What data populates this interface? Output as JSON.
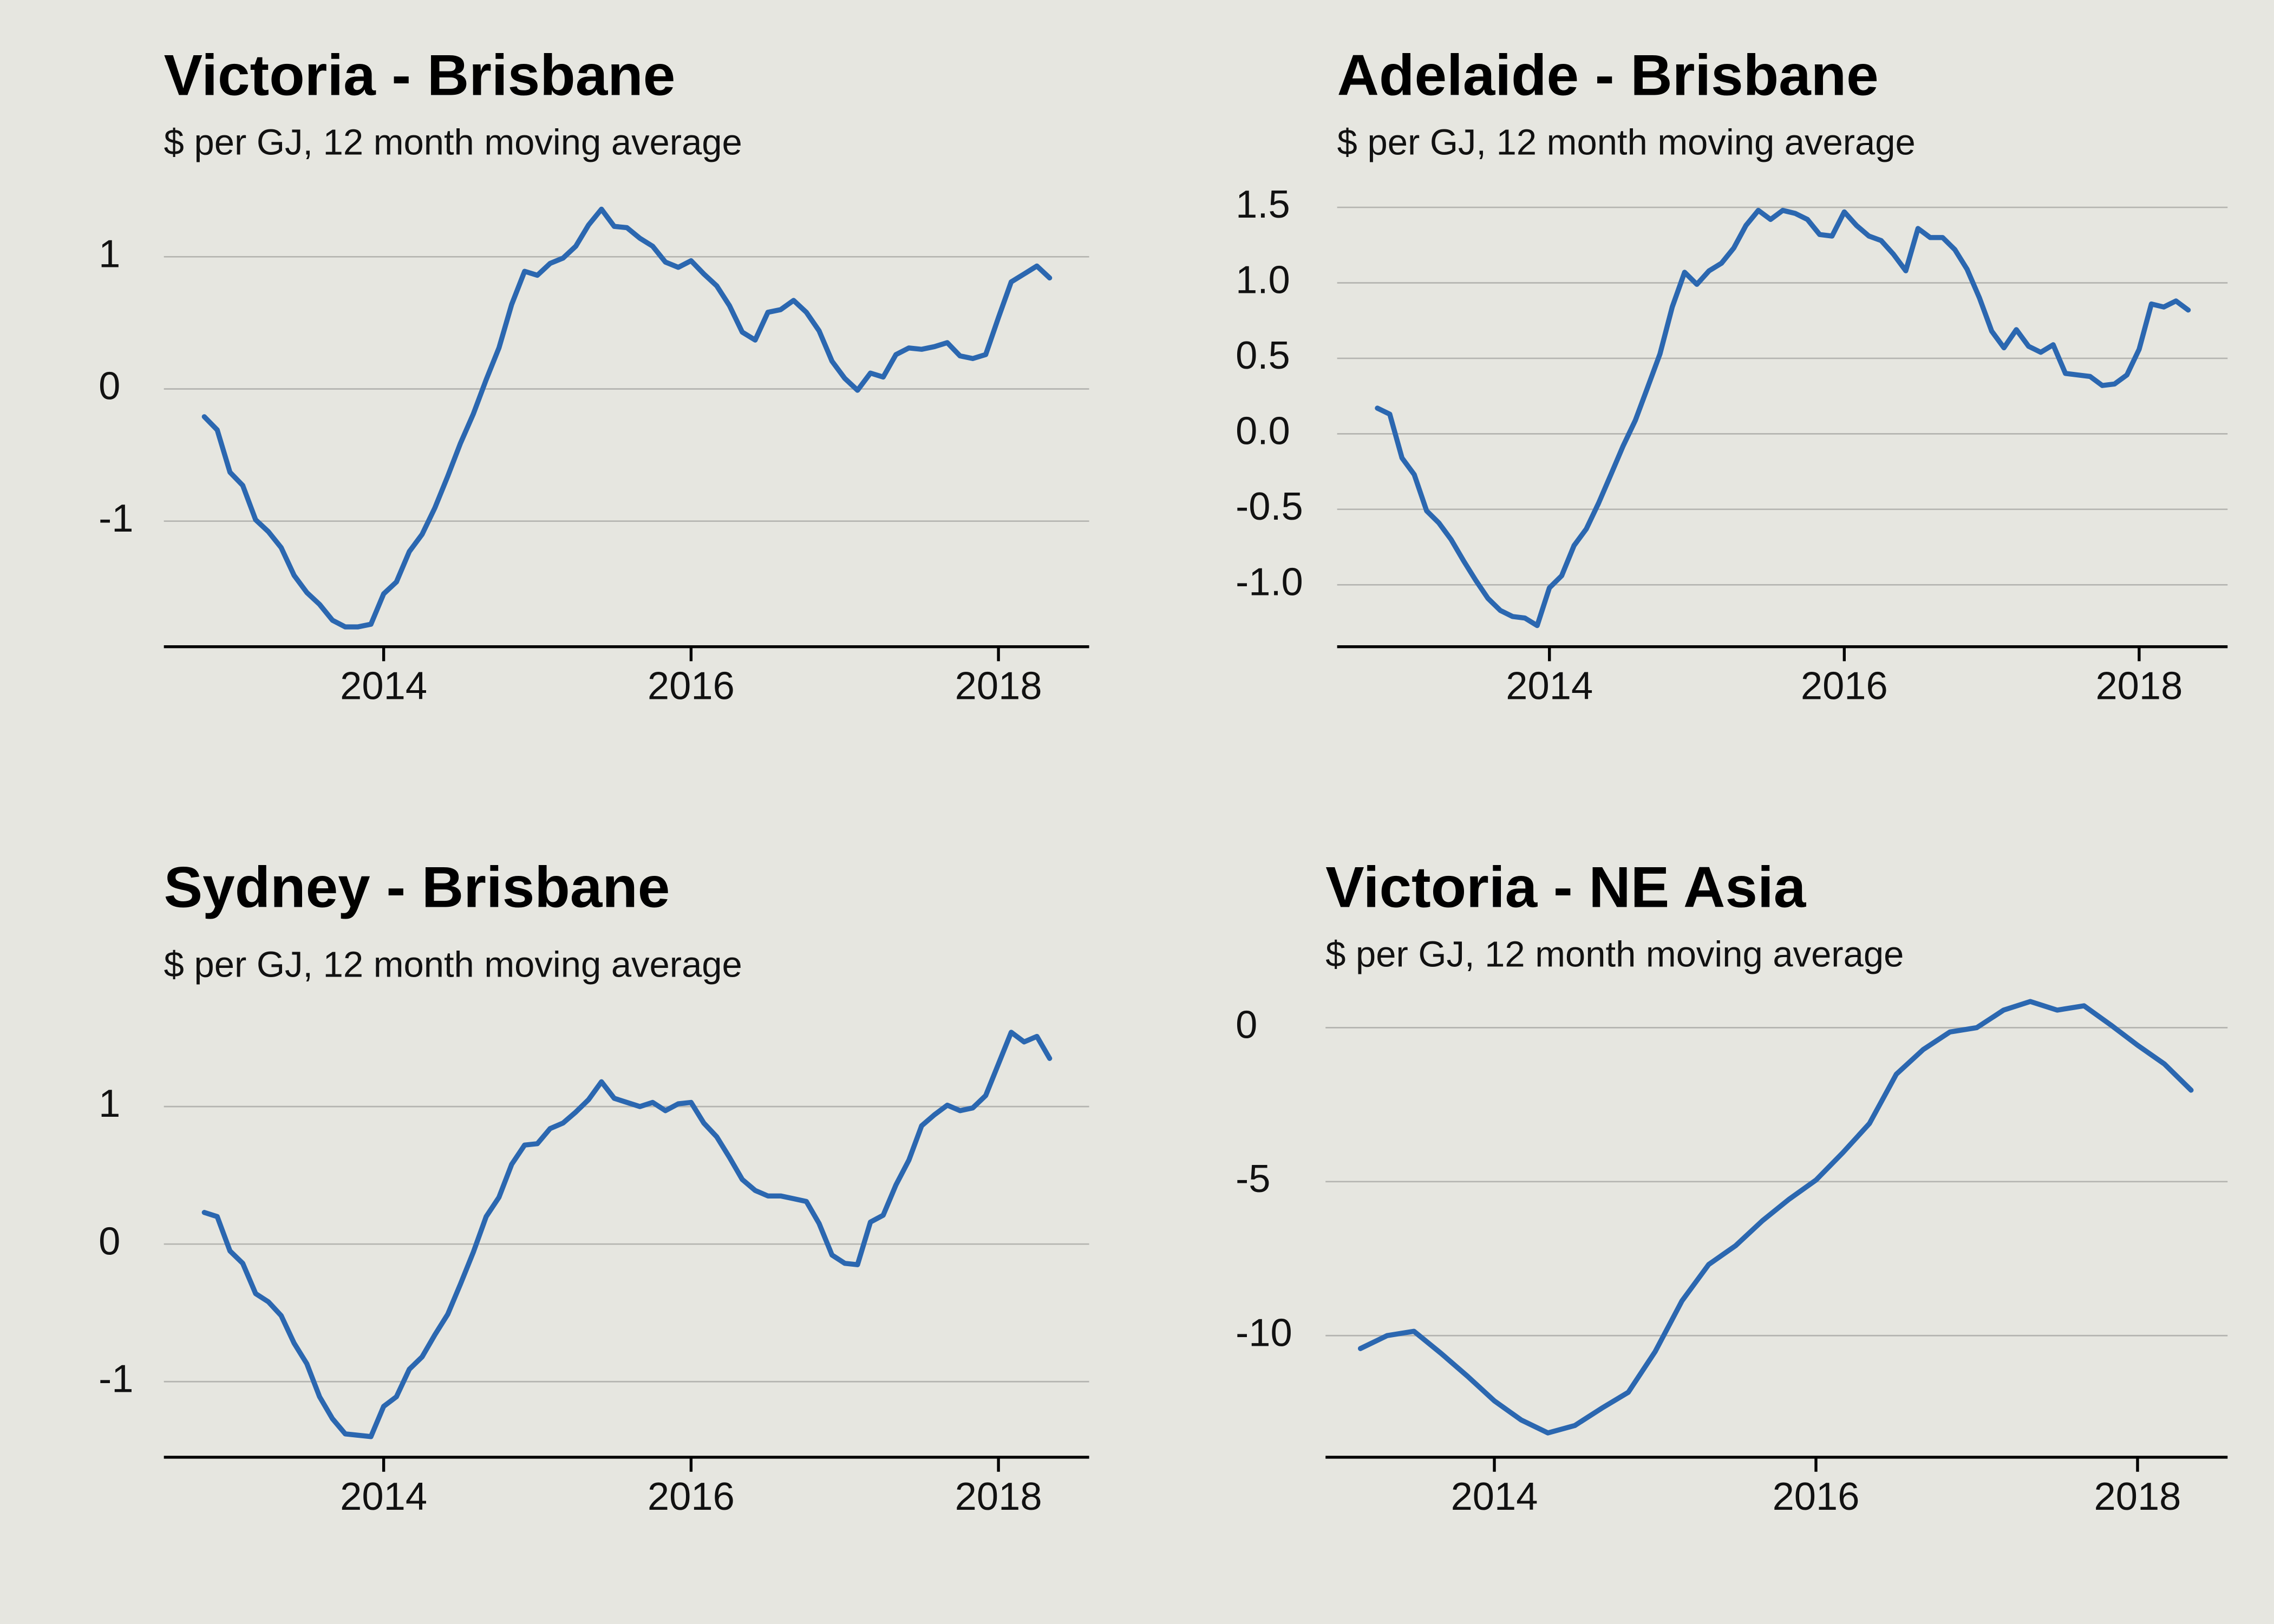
{
  "chart_data": [
    {
      "type": "line",
      "title": "Victoria - Brisbane",
      "subtitle": "$ per GJ, 12 month moving average",
      "x": [
        2012.833,
        2012.917,
        2013,
        2013.083,
        2013.167,
        2013.25,
        2013.333,
        2013.417,
        2013.5,
        2013.583,
        2013.667,
        2013.75,
        2013.833,
        2013.917,
        2014,
        2014.083,
        2014.167,
        2014.25,
        2014.333,
        2014.417,
        2014.5,
        2014.583,
        2014.667,
        2014.75,
        2014.833,
        2014.917,
        2015,
        2015.083,
        2015.167,
        2015.25,
        2015.333,
        2015.417,
        2015.5,
        2015.583,
        2015.667,
        2015.75,
        2015.833,
        2015.917,
        2016,
        2016.083,
        2016.167,
        2016.25,
        2016.333,
        2016.417,
        2016.5,
        2016.583,
        2016.667,
        2016.75,
        2016.833,
        2016.917,
        2017,
        2017.083,
        2017.167,
        2017.25,
        2017.333,
        2017.417,
        2017.5,
        2017.583,
        2017.667,
        2017.75,
        2017.833,
        2017.917,
        2018,
        2018.083,
        2018.167,
        2018.25,
        2018.333
      ],
      "series": [
        {
          "color": "#2b67b0",
          "values": [
            -0.21,
            -0.31,
            -0.63,
            -0.73,
            -0.99,
            -1.08,
            -1.2,
            -1.41,
            -1.54,
            -1.63,
            -1.75,
            -1.8,
            -1.8,
            -1.78,
            -1.55,
            -1.46,
            -1.23,
            -1.1,
            -0.9,
            -0.66,
            -0.41,
            -0.19,
            0.07,
            0.31,
            0.64,
            0.89,
            0.86,
            0.95,
            0.99,
            1.08,
            1.24,
            1.36,
            1.23,
            1.22,
            1.14,
            1.08,
            0.96,
            0.92,
            0.97,
            0.87,
            0.78,
            0.63,
            0.43,
            0.37,
            0.58,
            0.6,
            0.67,
            0.58,
            0.44,
            0.21,
            0.08,
            -0.01,
            0.12,
            0.09,
            0.26,
            0.31,
            0.3,
            0.32,
            0.35,
            0.25,
            0.23,
            0.26,
            0.54,
            0.81,
            0.87,
            0.93,
            0.84
          ]
        }
      ],
      "xlim": [
        2012.57,
        2018.59
      ],
      "ylim": [
        -1.95,
        1.5
      ],
      "xticks": [
        2014,
        2016,
        2018
      ],
      "yticks": [
        -1,
        0,
        1
      ],
      "grid": true
    },
    {
      "type": "line",
      "title": "Adelaide - Brisbane",
      "subtitle": "$ per GJ, 12 month moving average",
      "x": [
        2012.833,
        2012.917,
        2013,
        2013.083,
        2013.167,
        2013.25,
        2013.333,
        2013.417,
        2013.5,
        2013.583,
        2013.667,
        2013.75,
        2013.833,
        2013.917,
        2014,
        2014.083,
        2014.167,
        2014.25,
        2014.333,
        2014.417,
        2014.5,
        2014.583,
        2014.667,
        2014.75,
        2014.833,
        2014.917,
        2015,
        2015.083,
        2015.167,
        2015.25,
        2015.333,
        2015.417,
        2015.5,
        2015.583,
        2015.667,
        2015.75,
        2015.833,
        2015.917,
        2016,
        2016.083,
        2016.167,
        2016.25,
        2016.333,
        2016.417,
        2016.5,
        2016.583,
        2016.667,
        2016.75,
        2016.833,
        2016.917,
        2017,
        2017.083,
        2017.167,
        2017.25,
        2017.333,
        2017.417,
        2017.5,
        2017.583,
        2017.667,
        2017.75,
        2017.833,
        2017.917,
        2018,
        2018.083,
        2018.167,
        2018.25,
        2018.333
      ],
      "series": [
        {
          "color": "#2b67b0",
          "values": [
            0.17,
            0.13,
            -0.16,
            -0.27,
            -0.51,
            -0.59,
            -0.7,
            -0.84,
            -0.97,
            -1.09,
            -1.17,
            -1.21,
            -1.22,
            -1.27,
            -1.02,
            -0.94,
            -0.74,
            -0.63,
            -0.46,
            -0.27,
            -0.08,
            0.09,
            0.31,
            0.53,
            0.84,
            1.07,
            0.99,
            1.08,
            1.13,
            1.23,
            1.38,
            1.48,
            1.42,
            1.48,
            1.46,
            1.42,
            1.32,
            1.31,
            1.47,
            1.38,
            1.31,
            1.28,
            1.19,
            1.08,
            1.36,
            1.3,
            1.3,
            1.22,
            1.09,
            0.9,
            0.68,
            0.57,
            0.69,
            0.58,
            0.54,
            0.59,
            0.4,
            0.39,
            0.38,
            0.32,
            0.33,
            0.39,
            0.56,
            0.86,
            0.84,
            0.88,
            0.82
          ]
        }
      ],
      "xlim": [
        2012.56,
        2018.6
      ],
      "ylim": [
        -1.41,
        1.55
      ],
      "xticks": [
        2014,
        2016,
        2018
      ],
      "yticks": [
        {
          "value": -1,
          "label": "-1.0"
        },
        -0.5,
        {
          "value": 0,
          "label": "0.0"
        },
        0.5,
        {
          "value": 1,
          "label": "1.0"
        },
        1.5
      ],
      "grid": true
    },
    {
      "type": "line",
      "title": "Sydney - Brisbane",
      "subtitle": "$ per GJ, 12 month moving average",
      "x": [
        2012.833,
        2012.917,
        2013,
        2013.083,
        2013.167,
        2013.25,
        2013.333,
        2013.417,
        2013.5,
        2013.583,
        2013.667,
        2013.75,
        2013.833,
        2013.917,
        2014,
        2014.083,
        2014.167,
        2014.25,
        2014.333,
        2014.417,
        2014.5,
        2014.583,
        2014.667,
        2014.75,
        2014.833,
        2014.917,
        2015,
        2015.083,
        2015.167,
        2015.25,
        2015.333,
        2015.417,
        2015.5,
        2015.583,
        2015.667,
        2015.75,
        2015.833,
        2015.917,
        2016,
        2016.083,
        2016.167,
        2016.25,
        2016.333,
        2016.417,
        2016.5,
        2016.583,
        2016.667,
        2016.75,
        2016.833,
        2016.917,
        2017,
        2017.083,
        2017.167,
        2017.25,
        2017.333,
        2017.417,
        2017.5,
        2017.583,
        2017.667,
        2017.75,
        2017.833,
        2017.917,
        2018,
        2018.083,
        2018.167,
        2018.25,
        2018.333
      ],
      "series": [
        {
          "color": "#2b67b0",
          "values": [
            0.23,
            0.2,
            -0.05,
            -0.14,
            -0.36,
            -0.42,
            -0.52,
            -0.72,
            -0.87,
            -1.11,
            -1.27,
            -1.38,
            -1.39,
            -1.4,
            -1.18,
            -1.11,
            -0.91,
            -0.82,
            -0.66,
            -0.51,
            -0.29,
            -0.06,
            0.2,
            0.34,
            0.58,
            0.72,
            0.73,
            0.84,
            0.88,
            0.96,
            1.05,
            1.18,
            1.06,
            1.03,
            1,
            1.03,
            0.97,
            1.02,
            1.03,
            0.88,
            0.78,
            0.63,
            0.47,
            0.39,
            0.35,
            0.35,
            0.33,
            0.31,
            0.15,
            -0.08,
            -0.14,
            -0.15,
            0.16,
            0.21,
            0.43,
            0.61,
            0.86,
            0.94,
            1.01,
            0.97,
            0.99,
            1.08,
            1.31,
            1.54,
            1.47,
            1.51,
            1.35
          ]
        }
      ],
      "xlim": [
        2012.57,
        2018.59
      ],
      "ylim": [
        -1.55,
        1.75
      ],
      "xticks": [
        2014,
        2016,
        2018
      ],
      "yticks": [
        -1,
        0,
        1
      ],
      "grid": true
    },
    {
      "type": "line",
      "title": "Victoria - NE Asia",
      "subtitle": "$ per GJ, 12 month moving average",
      "x": [
        2013.167,
        2013.333,
        2013.5,
        2013.667,
        2013.833,
        2014,
        2014.167,
        2014.333,
        2014.5,
        2014.667,
        2014.833,
        2015,
        2015.167,
        2015.333,
        2015.5,
        2015.667,
        2015.833,
        2016,
        2016.167,
        2016.333,
        2016.5,
        2016.667,
        2016.833,
        2017,
        2017.167,
        2017.333,
        2017.5,
        2017.667,
        2017.833,
        2018,
        2018.167,
        2018.333
      ],
      "series": [
        {
          "color": "#2b67b0",
          "values": [
            -10.42,
            -10,
            -9.86,
            -10.57,
            -11.32,
            -12.12,
            -12.74,
            -13.16,
            -12.92,
            -12.36,
            -11.84,
            -10.52,
            -8.87,
            -7.69,
            -7.08,
            -6.27,
            -5.57,
            -4.95,
            -4.06,
            -3.11,
            -1.51,
            -0.71,
            -0.14,
            0,
            0.57,
            0.85,
            0.57,
            0.71,
            0.09,
            -0.57,
            -1.18,
            -2.03
          ]
        }
      ],
      "xlim": [
        2012.95,
        2018.56
      ],
      "ylim": [
        -13.95,
        1.4
      ],
      "xticks": [
        2014,
        2016,
        2018
      ],
      "yticks": [
        -10,
        -5,
        0
      ],
      "grid": true
    }
  ]
}
